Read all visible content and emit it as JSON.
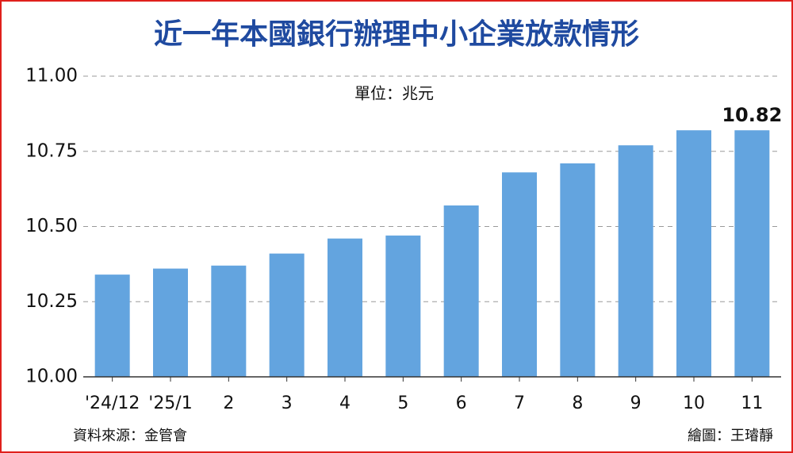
{
  "chart_data": {
    "type": "bar",
    "title": "近一年本國銀行辦理中小企業放款情形",
    "subtitle": "單位：兆元",
    "source": "資料來源：金管會",
    "credit": "繪圖：王璿靜",
    "categories": [
      "'24/12",
      "'25/1",
      "2",
      "3",
      "4",
      "5",
      "6",
      "7",
      "8",
      "9",
      "10",
      "11"
    ],
    "values": [
      10.34,
      10.36,
      10.37,
      10.41,
      10.46,
      10.47,
      10.57,
      10.68,
      10.71,
      10.77,
      10.82,
      10.82
    ],
    "color": "#63a4df",
    "ylim": [
      10,
      11
    ],
    "yticks": [
      {
        "value": 10,
        "label": "10.00"
      },
      {
        "value": 10.25,
        "label": "10.25"
      },
      {
        "value": 10.5,
        "label": "10.50"
      },
      {
        "value": 10.75,
        "label": "10.75"
      },
      {
        "value": 11,
        "label": "11.00"
      }
    ],
    "grid": true
  }
}
